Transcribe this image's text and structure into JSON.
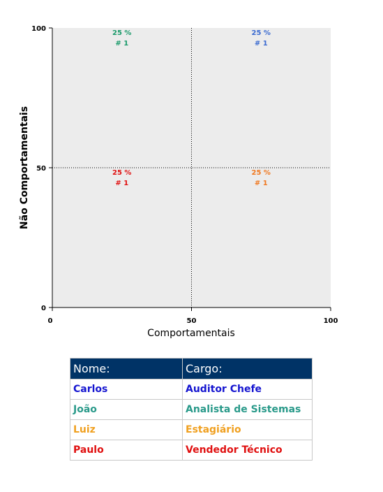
{
  "chart_data": {
    "type": "scatter",
    "xlabel": "Comportamentais",
    "ylabel": "Não Comportamentais",
    "xlim": [
      0,
      100
    ],
    "ylim": [
      0,
      100
    ],
    "xticks": [
      "0",
      "50",
      "100"
    ],
    "yticks": [
      "0",
      "50",
      "100"
    ],
    "grid": false,
    "quadrants": [
      {
        "x": 25,
        "y": 100,
        "percent": "25 %",
        "count": "# 1",
        "color": "#1a9a6a"
      },
      {
        "x": 75,
        "y": 100,
        "percent": "25 %",
        "count": "# 1",
        "color": "#3a6ad0"
      },
      {
        "x": 25,
        "y": 50,
        "percent": "25 %",
        "count": "# 1",
        "color": "#e01010"
      },
      {
        "x": 75,
        "y": 50,
        "percent": "25 %",
        "count": "# 1",
        "color": "#f07820"
      }
    ],
    "divider_x": 50,
    "divider_y": 50,
    "plot_background": "#ececec"
  },
  "table": {
    "headers": [
      "Nome:",
      "Cargo:"
    ],
    "header_color": "#003366",
    "rows": [
      {
        "name": "Carlos",
        "role": "Auditor Chefe",
        "color": "#1515d0"
      },
      {
        "name": "João",
        "role": "Analista de Sistemas",
        "color": "#2a9a8a"
      },
      {
        "name": "Luiz",
        "role": "Estagiário",
        "color": "#f0a020"
      },
      {
        "name": "Paulo",
        "role": "Vendedor Técnico",
        "color": "#e01010"
      }
    ]
  }
}
